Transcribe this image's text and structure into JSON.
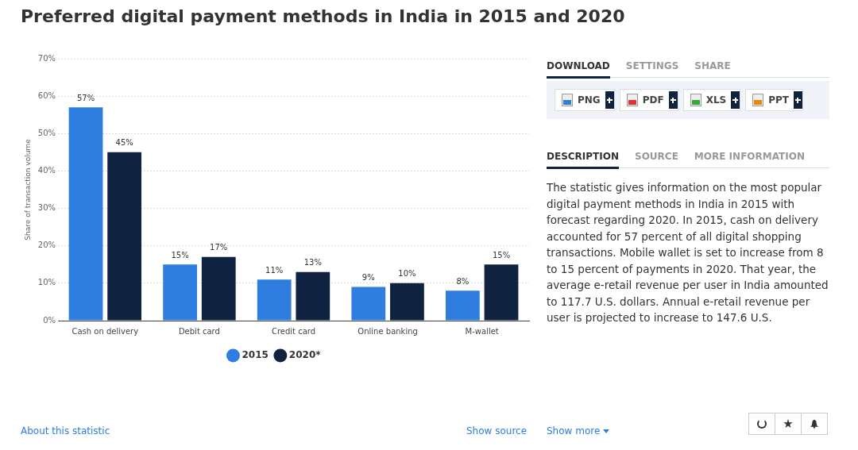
{
  "chart_data": {
    "type": "bar",
    "title": "Preferred digital payment methods in India in 2015 and 2020",
    "categories": [
      "Cash on delivery",
      "Debit card",
      "Credit card",
      "Online banking",
      "M-wallet"
    ],
    "series": [
      {
        "name": "2015",
        "color": "#2f7ddf",
        "values": [
          57,
          15,
          11,
          9,
          8
        ],
        "value_labels": [
          "57%",
          "15%",
          "11%",
          "9%",
          "8%"
        ]
      },
      {
        "name": "2020*",
        "color": "#0f2240",
        "values": [
          45,
          17,
          13,
          10,
          15
        ],
        "value_labels": [
          "45%",
          "17%",
          "13%",
          "10%",
          "15%"
        ]
      }
    ],
    "ylabel": "Share of transaction volume",
    "ylim": [
      0,
      70
    ],
    "yticks": [
      {
        "value": 0,
        "label": "0%"
      },
      {
        "value": 10,
        "label": "10%"
      },
      {
        "value": 20,
        "label": "20%"
      },
      {
        "value": 30,
        "label": "30%"
      },
      {
        "value": 40,
        "label": "40%"
      },
      {
        "value": 50,
        "label": "50%"
      },
      {
        "value": 60,
        "label": "60%"
      },
      {
        "value": 70,
        "label": "70%"
      }
    ],
    "grid": "y",
    "legend": "bottom",
    "marker": "circle",
    "annotations": [
      "DOWNLOAD",
      "SETTINGS",
      "SHARE",
      "PNG",
      "PDF",
      "XLS",
      "PPT",
      "DESCRIPTION",
      "SOURCE",
      "MORE INFORMATION",
      "The statistic gives information on the most popular digital payment methods in India in 2015 with forecast regarding 2020. In 2015, cash on delivery accounted for 57 percent of all digital shopping transactions. Mobile wallet is set to increase from 8 to 15 percent of payments in 2020. That year, the average e-retail revenue per user in India amounted to 117.7 U.S. dollars. Annual e-retail revenue per user is projected to increase to 147.6 U.S.",
      "About this statistic",
      "Show source",
      "Show more"
    ]
  }
}
